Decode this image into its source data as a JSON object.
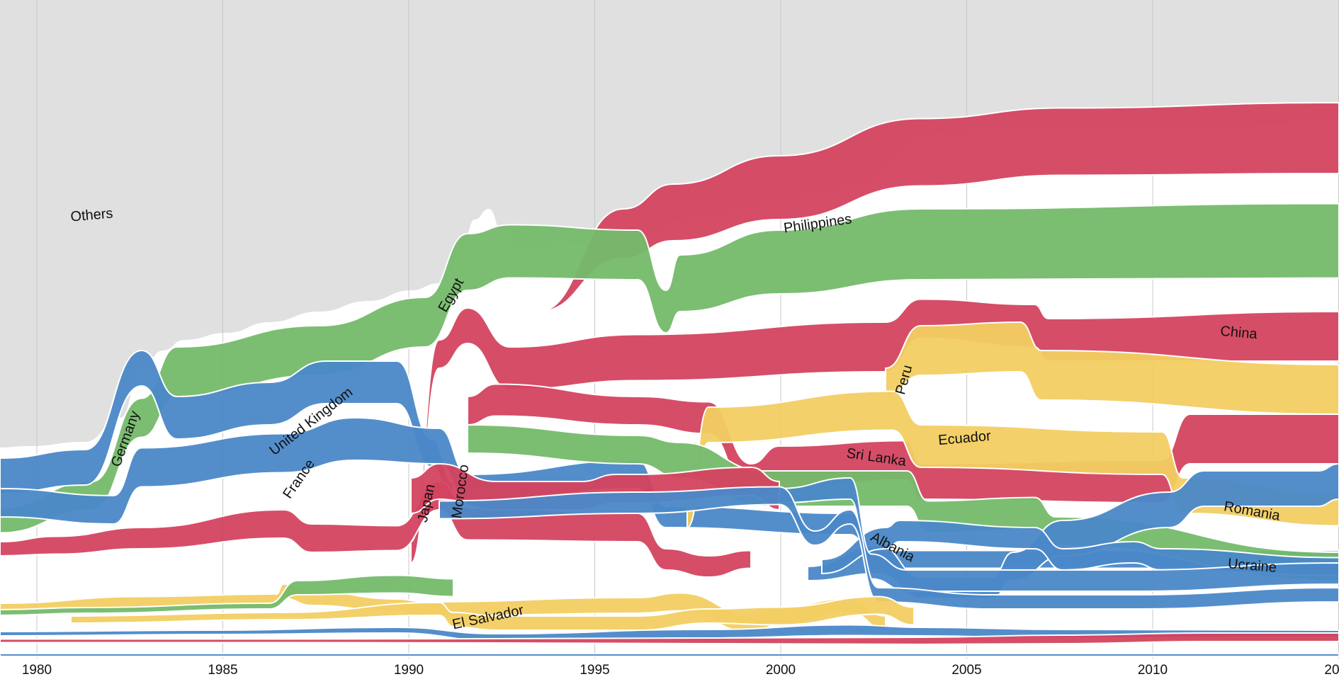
{
  "chart_data": {
    "type": "area",
    "subtype": "ranked streamgraph (bump area chart)",
    "title": "",
    "xlabel": "",
    "ylabel": "",
    "x_ticks": [
      "1980",
      "1985",
      "1990",
      "1995",
      "2000",
      "2005",
      "2010",
      "20"
    ],
    "xlim": [
      1979,
      2015
    ],
    "grid": "vertical lines at 5-year ticks",
    "colors": {
      "red": "#d4435f",
      "green": "#74bb6a",
      "blue": "#4a88c8",
      "yellow": "#f2cd62",
      "others": "#e0e0e0"
    },
    "others_label": "Others",
    "labels": [
      {
        "text": "Others",
        "color": "others",
        "year": 1981.5
      },
      {
        "text": "Germany",
        "color": "green",
        "year": 1982.6
      },
      {
        "text": "United Kingdom",
        "color": "blue",
        "year": 1987.5
      },
      {
        "text": "France",
        "color": "blue",
        "year": 1986.8
      },
      {
        "text": "Egypt",
        "color": "green",
        "year": 1991.2
      },
      {
        "text": "Japan",
        "color": "red",
        "year": 1990.6
      },
      {
        "text": "Morocco",
        "color": "green",
        "year": 1991.5
      },
      {
        "text": "El Salvador",
        "color": "yellow",
        "year": 1992.2
      },
      {
        "text": "Philippines",
        "color": "red",
        "year": 2000.0
      },
      {
        "text": "Peru",
        "color": "yellow",
        "year": 2003.6
      },
      {
        "text": "Sri Lanka",
        "color": "red",
        "year": 2002.5
      },
      {
        "text": "Ecuador",
        "color": "yellow",
        "year": 2005.0
      },
      {
        "text": "China",
        "color": "red",
        "year": 2012.5
      },
      {
        "text": "Albania",
        "color": "blue",
        "year": 2002.9
      },
      {
        "text": "Romania",
        "color": "blue",
        "year": 2012.3
      },
      {
        "text": "Ucraine",
        "color": "blue",
        "year": 2012.5
      }
    ]
  }
}
